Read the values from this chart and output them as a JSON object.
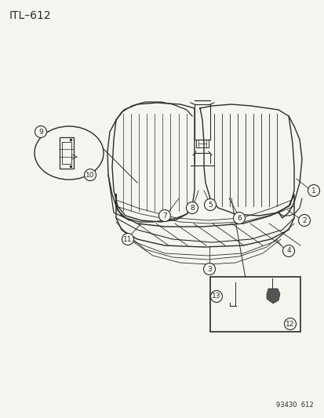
{
  "title": "ITL–612",
  "part_number": "93430  612",
  "bg_color": "#f5f5f0",
  "line_color": "#2a2a2a",
  "text_color": "#2a2a2a",
  "title_fontsize": 10,
  "label_fontsize": 6.5,
  "figsize": [
    4.14,
    5.33
  ],
  "dpi": 100,
  "labels": [
    1,
    2,
    3,
    4,
    5,
    6,
    7,
    8,
    9,
    10,
    11,
    12,
    13
  ]
}
